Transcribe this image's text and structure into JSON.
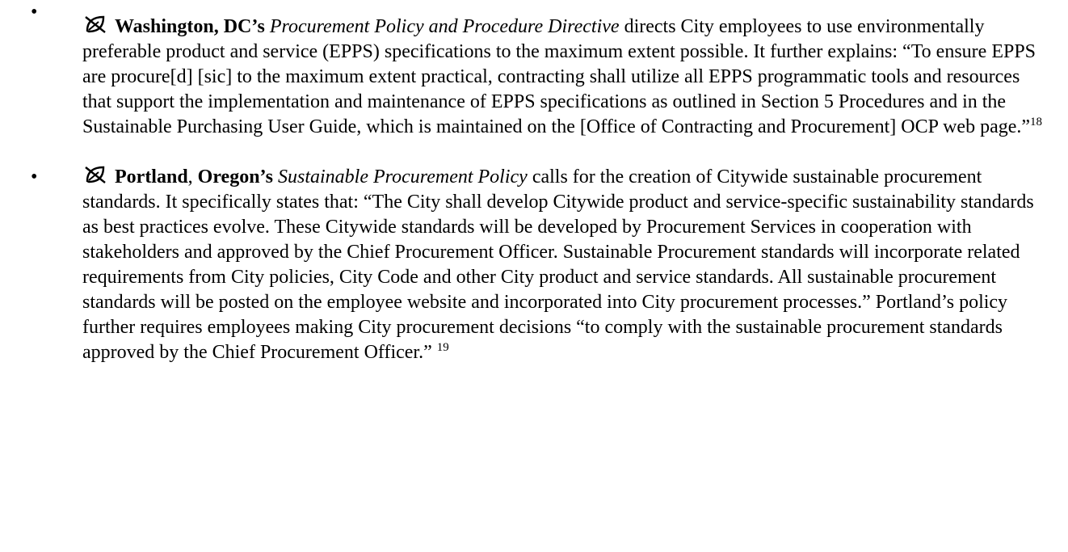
{
  "items": [
    {
      "place": "Washington, DC’s",
      "policy": "Procurement Policy and Procedure Directive",
      "text": "directs City employees to use environmentally preferable product and service (EPPS) specifications to the maximum extent possible. It further explains: “To ensure EPPS are procure[d] [sic] to the maximum extent practical, contracting shall utilize all EPPS programmatic tools and resources that support the implementation and maintenance of EPPS specifications as outlined in Section 5 Procedures and in the Sustainable Purchasing User Guide, which is maintained on the [Office of Contracting and Procurement] OCP web page.”",
      "note": "18"
    },
    {
      "city": "Portland",
      "sep": ",",
      "state": "Oregon’s",
      "policy": "Sustainable Procurement Policy",
      "text": "calls for the creation of Citywide sustainable procurement standards. It specifically states that: “The City shall develop Citywide product and service-specific sustainability standards as best practices evolve. These Citywide standards will be developed by Procurement Services in cooperation with stakeholders and approved by the Chief Procurement Officer. Sustainable Procurement standards will incorporate related requirements from City policies, City Code and other City product and service standards. All sustainable procurement standards will be posted on the employee website and incorporated into City procurement processes.” Portland’s policy further requires employees making City procurement decisions “to comply with the sustainable procurement standards approved by the Chief Procurement Officer.”",
      "note": "19"
    }
  ]
}
